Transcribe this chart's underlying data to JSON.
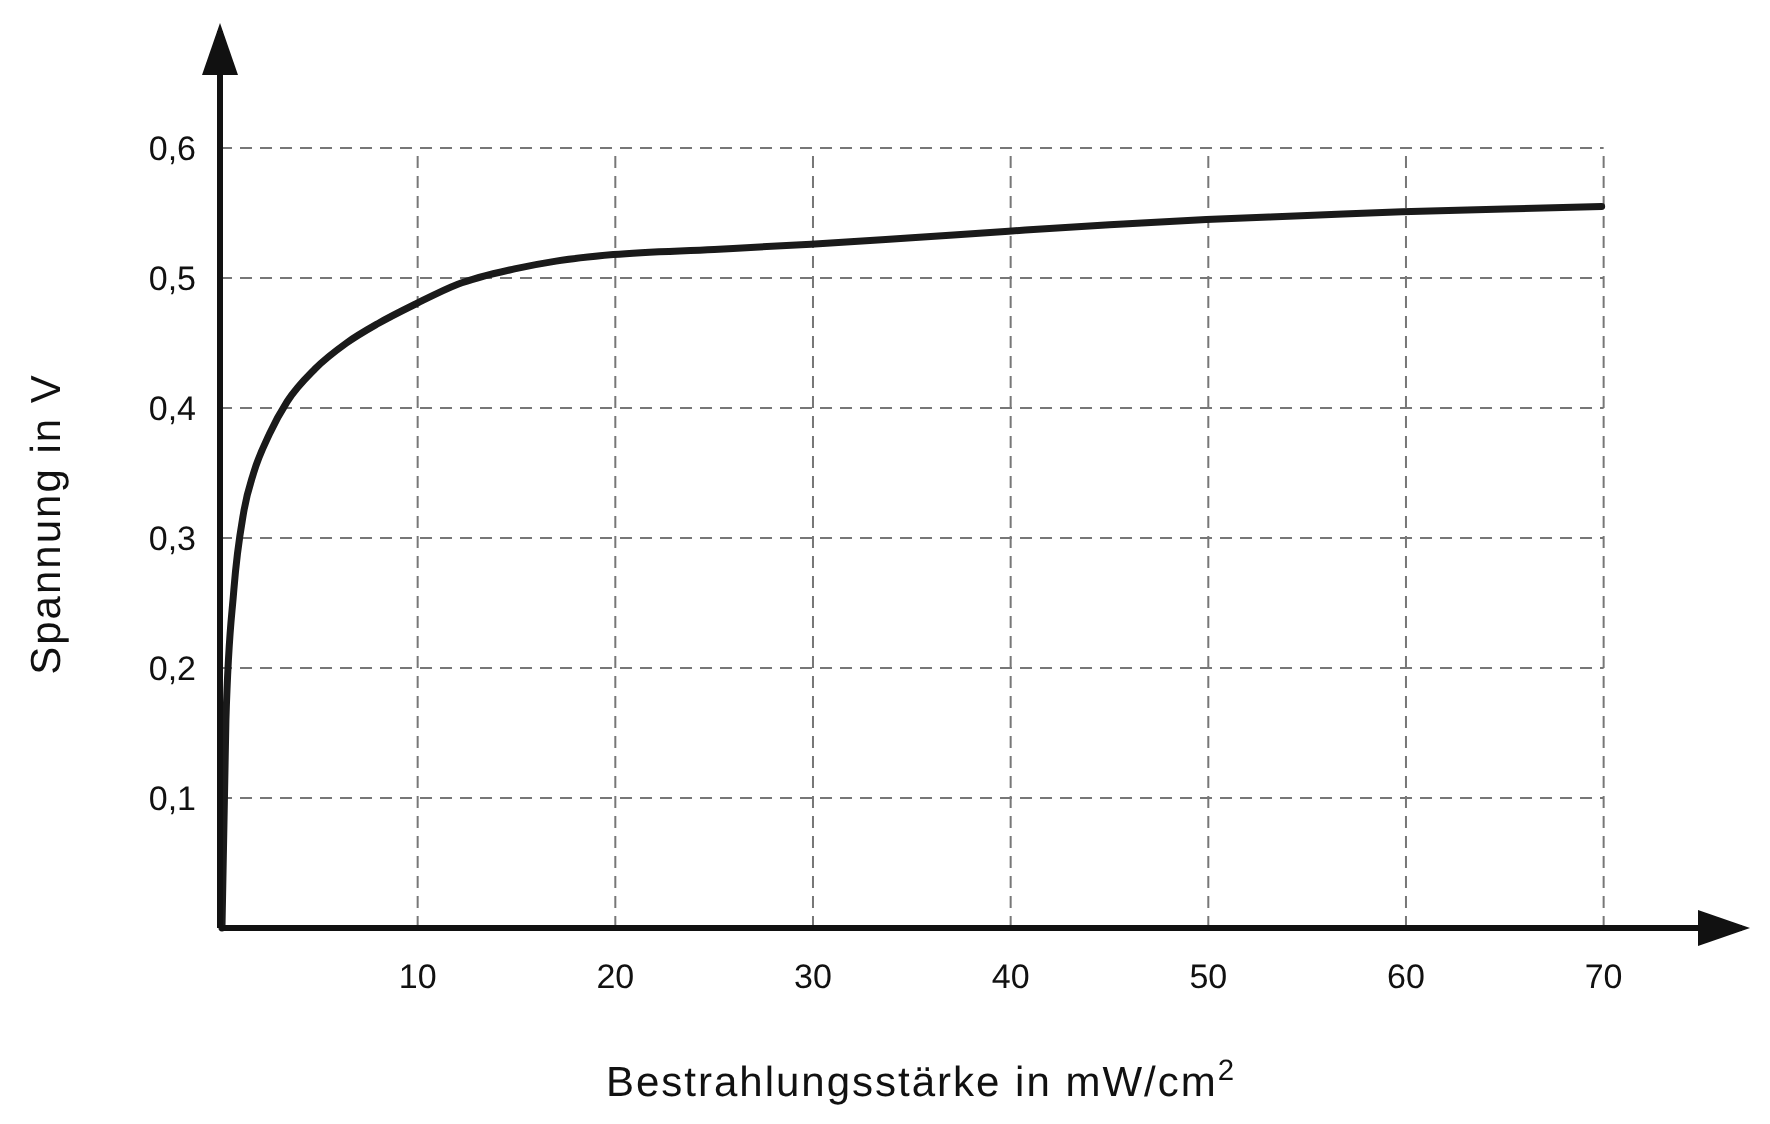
{
  "chart_data": {
    "type": "line",
    "xlabel": "Bestrahlungsstärke in mW/cm$^{2}$",
    "ylabel": "Spannung in V",
    "xlim": [
      0,
      77
    ],
    "ylim": [
      0,
      0.69
    ],
    "xticks": [
      10,
      20,
      30,
      40,
      50,
      60,
      70
    ],
    "yticks": [
      {
        "value": 0.1,
        "label": "0,1"
      },
      {
        "value": 0.2,
        "label": "0,2"
      },
      {
        "value": 0.3,
        "label": "0,3"
      },
      {
        "value": 0.4,
        "label": "0,4"
      },
      {
        "value": 0.5,
        "label": "0,5"
      },
      {
        "value": 0.6,
        "label": "0,6"
      }
    ],
    "grid": true,
    "marker": "none",
    "line_style": "solid",
    "series": [
      {
        "color": "#1a1a1a",
        "x": [
          0.1,
          0.3,
          0.7,
          1.2,
          1.7,
          2.5,
          3.4,
          4.8,
          6.4,
          8,
          9.9,
          12,
          14.9,
          17,
          19.9,
          25,
          29.9,
          35,
          39.9,
          45,
          49.9,
          55,
          59.8,
          65,
          69.9
        ],
        "values": [
          0,
          0.16,
          0.26,
          0.32,
          0.35,
          0.38,
          0.405,
          0.43,
          0.45,
          0.465,
          0.48,
          0.495,
          0.507,
          0.513,
          0.518,
          0.522,
          0.526,
          0.531,
          0.536,
          0.541,
          0.545,
          0.548,
          0.551,
          0.553,
          0.555
        ]
      }
    ]
  }
}
